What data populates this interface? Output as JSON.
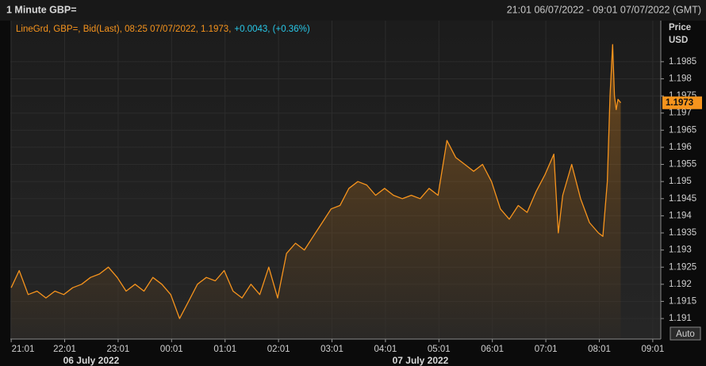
{
  "chart_data": {
    "type": "line",
    "title": "1 Minute GBP=",
    "date_range": "21:01 06/07/2022 - 09:01 07/07/2022 (GMT)",
    "legend_text": "LineGrd, GBP=, Bid(Last), 08:25 07/07/2022, 1.1973,",
    "legend_change": "+0.0043, (+0.36%)",
    "y_axis_label": "Price",
    "y_axis_unit": "USD",
    "button": "Auto",
    "day_labels": [
      "06 July 2022",
      "07 July 2022"
    ],
    "x": [
      "2022-07-06T21:01",
      "2022-07-06T21:10",
      "2022-07-06T21:20",
      "2022-07-06T21:30",
      "2022-07-06T21:40",
      "2022-07-06T21:50",
      "2022-07-06T22:00",
      "2022-07-06T22:10",
      "2022-07-06T22:20",
      "2022-07-06T22:30",
      "2022-07-06T22:40",
      "2022-07-06T22:50",
      "2022-07-06T23:00",
      "2022-07-06T23:10",
      "2022-07-06T23:20",
      "2022-07-06T23:30",
      "2022-07-06T23:40",
      "2022-07-06T23:50",
      "2022-07-07T00:00",
      "2022-07-07T00:10",
      "2022-07-07T00:20",
      "2022-07-07T00:30",
      "2022-07-07T00:40",
      "2022-07-07T00:50",
      "2022-07-07T01:00",
      "2022-07-07T01:10",
      "2022-07-07T01:20",
      "2022-07-07T01:30",
      "2022-07-07T01:40",
      "2022-07-07T01:50",
      "2022-07-07T02:00",
      "2022-07-07T02:10",
      "2022-07-07T02:20",
      "2022-07-07T02:30",
      "2022-07-07T02:40",
      "2022-07-07T02:50",
      "2022-07-07T03:00",
      "2022-07-07T03:10",
      "2022-07-07T03:20",
      "2022-07-07T03:30",
      "2022-07-07T03:40",
      "2022-07-07T03:50",
      "2022-07-07T04:00",
      "2022-07-07T04:10",
      "2022-07-07T04:20",
      "2022-07-07T04:30",
      "2022-07-07T04:40",
      "2022-07-07T04:50",
      "2022-07-07T05:00",
      "2022-07-07T05:10",
      "2022-07-07T05:20",
      "2022-07-07T05:30",
      "2022-07-07T05:40",
      "2022-07-07T05:50",
      "2022-07-07T06:00",
      "2022-07-07T06:10",
      "2022-07-07T06:20",
      "2022-07-07T06:30",
      "2022-07-07T06:40",
      "2022-07-07T06:50",
      "2022-07-07T07:00",
      "2022-07-07T07:10",
      "2022-07-07T07:15",
      "2022-07-07T07:20",
      "2022-07-07T07:30",
      "2022-07-07T07:40",
      "2022-07-07T07:50",
      "2022-07-07T08:00",
      "2022-07-07T08:05",
      "2022-07-07T08:10",
      "2022-07-07T08:13",
      "2022-07-07T08:16",
      "2022-07-07T08:18",
      "2022-07-07T08:20",
      "2022-07-07T08:22",
      "2022-07-07T08:25"
    ],
    "series": [
      {
        "name": "GBP=",
        "color": "#f7941d",
        "values": [
          1.1919,
          1.1924,
          1.1917,
          1.1918,
          1.1916,
          1.1918,
          1.1917,
          1.1919,
          1.192,
          1.1922,
          1.1923,
          1.1925,
          1.1922,
          1.1918,
          1.192,
          1.1918,
          1.1922,
          1.192,
          1.1917,
          1.191,
          1.1915,
          1.192,
          1.1922,
          1.1921,
          1.1924,
          1.1918,
          1.1916,
          1.192,
          1.1917,
          1.1925,
          1.1916,
          1.1929,
          1.1932,
          1.193,
          1.1934,
          1.1938,
          1.1942,
          1.1943,
          1.1948,
          1.195,
          1.1949,
          1.1946,
          1.1948,
          1.1946,
          1.1945,
          1.1946,
          1.1945,
          1.1948,
          1.1946,
          1.1962,
          1.1957,
          1.1955,
          1.1953,
          1.1955,
          1.195,
          1.1942,
          1.1939,
          1.1943,
          1.1941,
          1.1947,
          1.1952,
          1.1958,
          1.1935,
          1.1946,
          1.1955,
          1.1945,
          1.1938,
          1.1935,
          1.1934,
          1.195,
          1.1975,
          1.199,
          1.1975,
          1.1971,
          1.1974,
          1.1973
        ]
      }
    ],
    "xlim": [
      "2022-07-06T21:00",
      "2022-07-07T09:10"
    ],
    "xticks": [
      {
        "value": "2022-07-06T21:01",
        "label": "21:01"
      },
      {
        "value": "2022-07-06T22:01",
        "label": "22:01"
      },
      {
        "value": "2022-07-06T23:01",
        "label": "23:01"
      },
      {
        "value": "2022-07-07T00:01",
        "label": "00:01"
      },
      {
        "value": "2022-07-07T01:01",
        "label": "01:01"
      },
      {
        "value": "2022-07-07T02:01",
        "label": "02:01"
      },
      {
        "value": "2022-07-07T03:01",
        "label": "03:01"
      },
      {
        "value": "2022-07-07T04:01",
        "label": "04:01"
      },
      {
        "value": "2022-07-07T05:01",
        "label": "05:01"
      },
      {
        "value": "2022-07-07T06:01",
        "label": "06:01"
      },
      {
        "value": "2022-07-07T07:01",
        "label": "07:01"
      },
      {
        "value": "2022-07-07T08:01",
        "label": "08:01"
      },
      {
        "value": "2022-07-07T09:01",
        "label": "09:01"
      }
    ],
    "ylim": [
      1.1904,
      1.1997
    ],
    "yticks": [
      1.191,
      1.1915,
      1.192,
      1.1925,
      1.193,
      1.1935,
      1.194,
      1.1945,
      1.195,
      1.1955,
      1.196,
      1.1965,
      1.197,
      1.1975,
      1.198,
      1.1985
    ],
    "grid": true
  }
}
